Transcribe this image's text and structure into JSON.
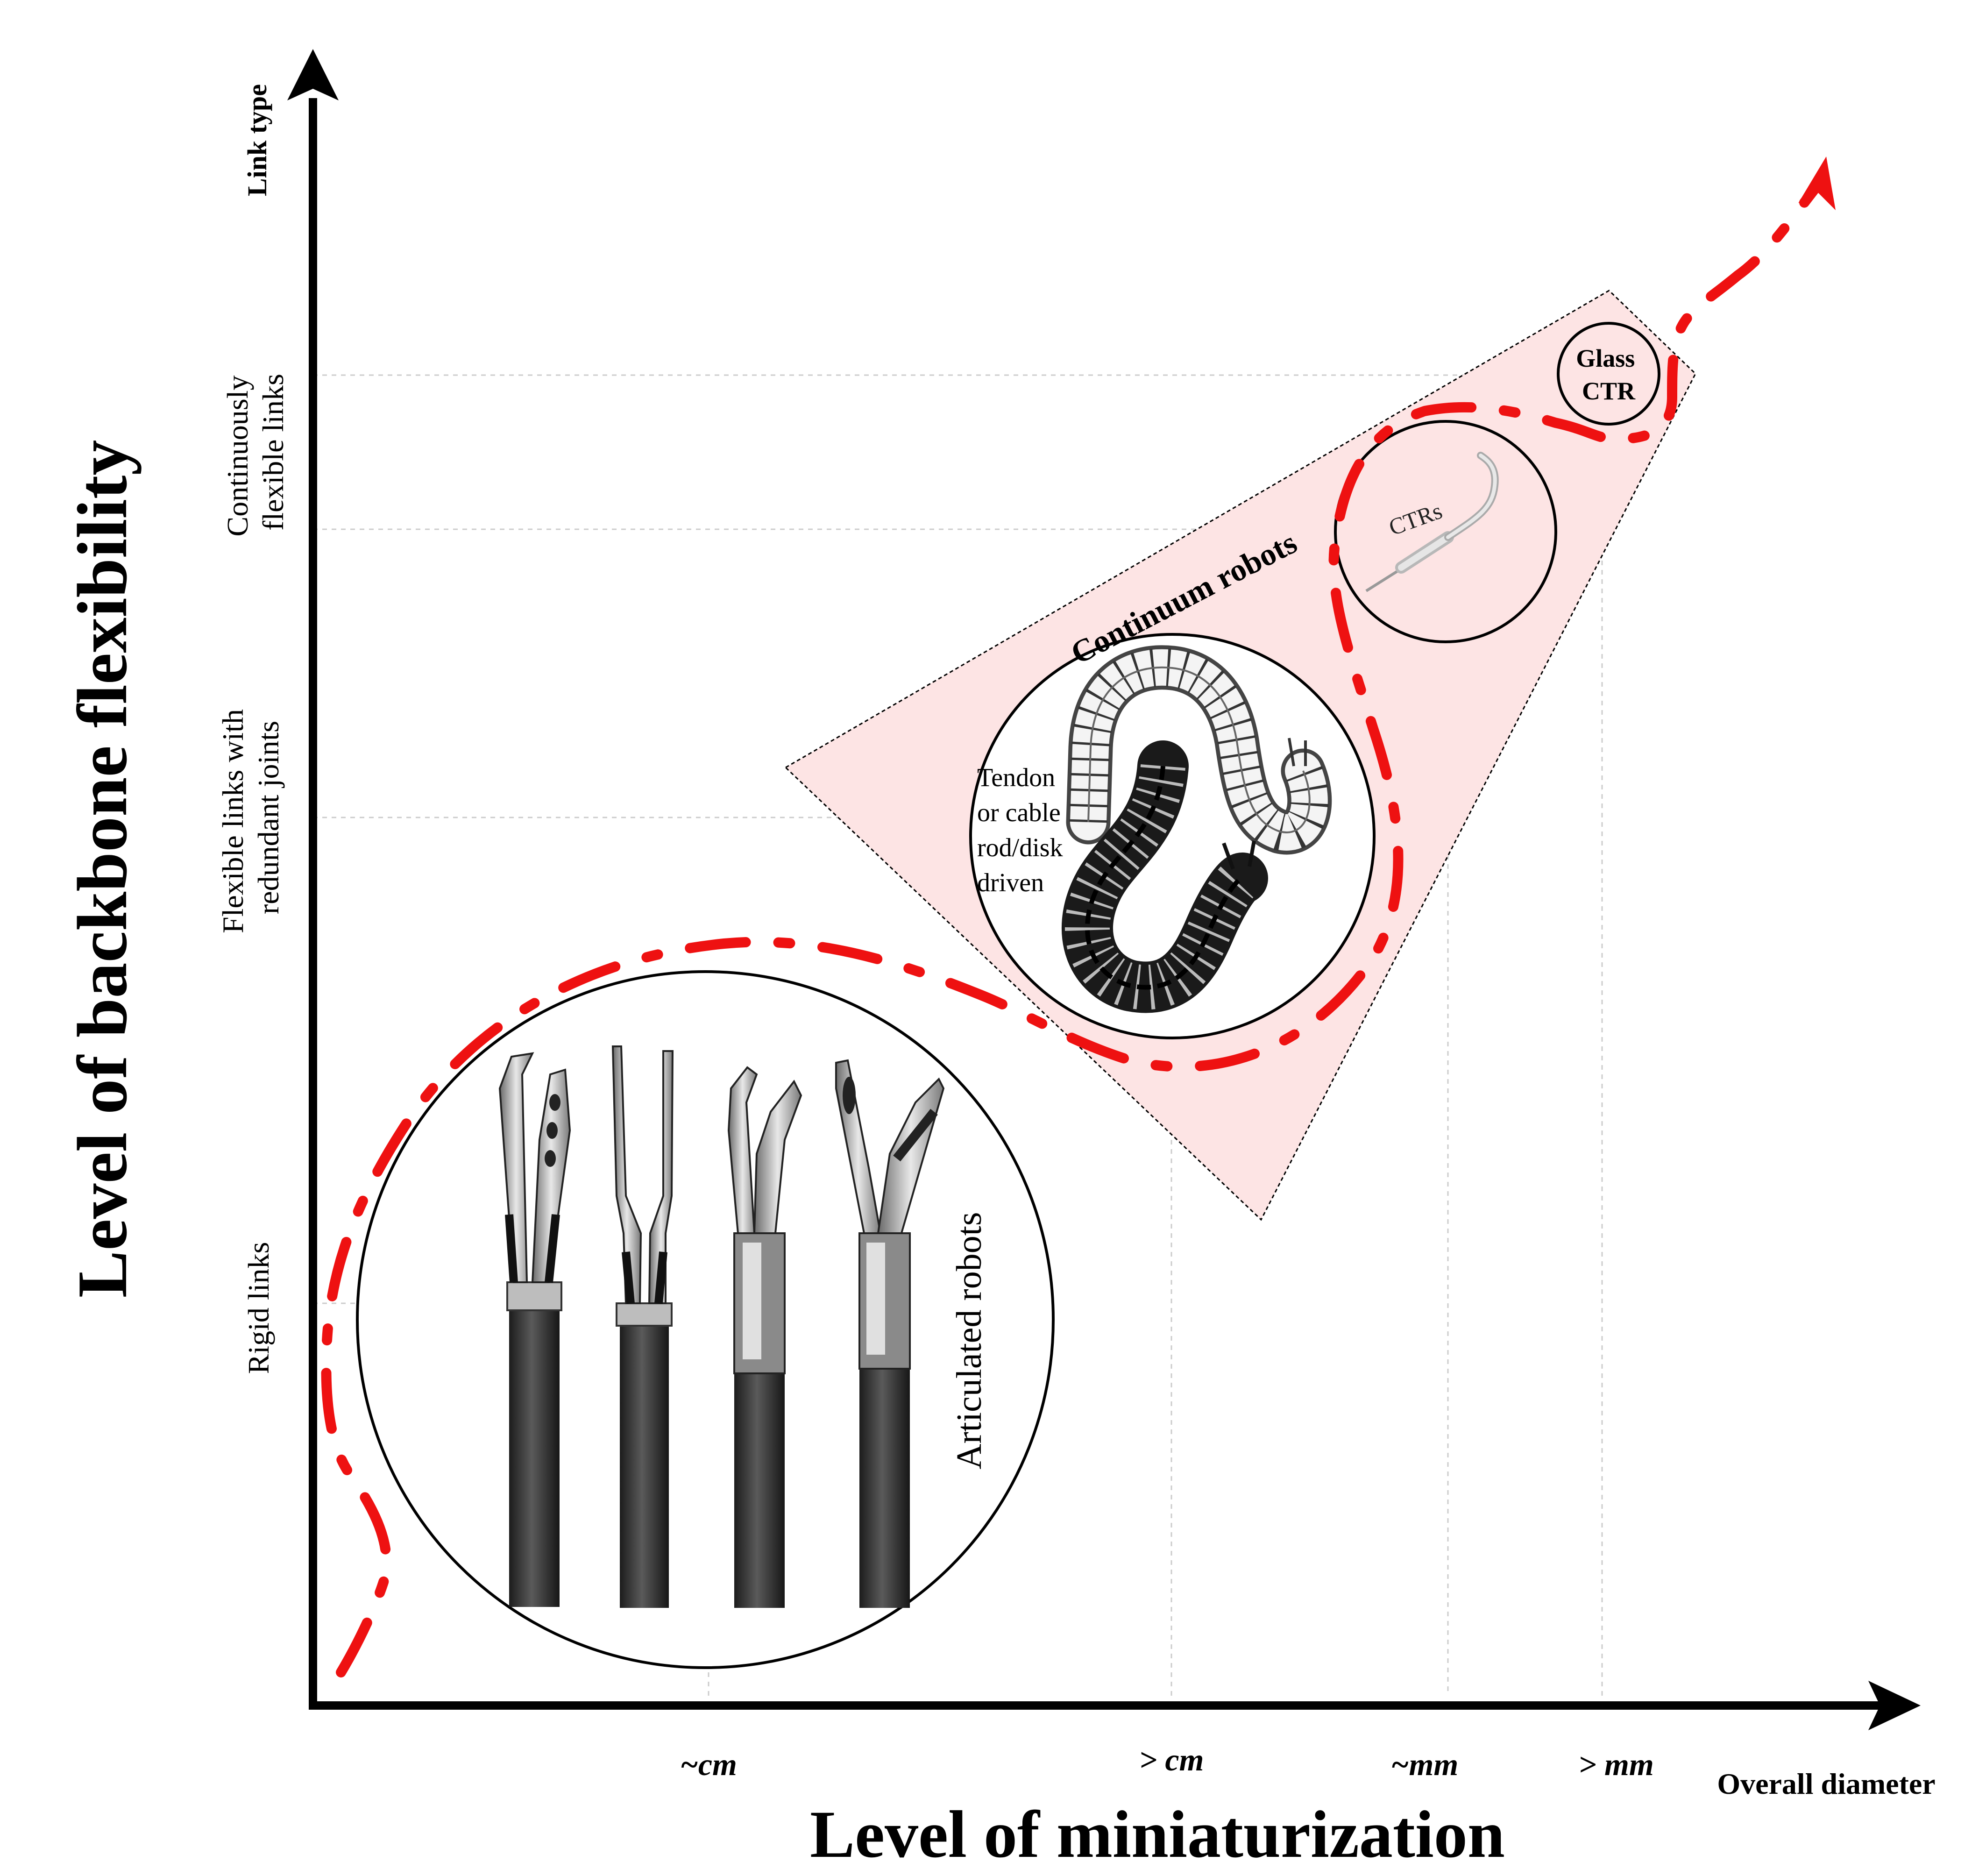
{
  "axes": {
    "y_title": "Level of backbone flexibility",
    "x_title": "Level of miniaturization",
    "y_subtitle": "Link type",
    "x_subtitle": "Overall diameter"
  },
  "y_levels": {
    "rigid": "Rigid links",
    "redundant_line1": "Flexible links with",
    "redundant_line2": "redundant joints",
    "continuous_line1": "Continuously",
    "continuous_line2": "flexible links"
  },
  "x_ticks": [
    "~cm",
    "> cm",
    "~mm",
    "> mm"
  ],
  "regions": {
    "continuum_label": "Continuum robots",
    "articulated_label": "Articulated robots",
    "tendon_lines": [
      "Tendon",
      "or cable",
      "rod/disk",
      "driven"
    ],
    "ctr_label": "CTRs",
    "glass_ctr_lines": [
      "Glass",
      "CTR"
    ]
  },
  "colors": {
    "axis": "#000000",
    "trend": "#ee1111",
    "continuum_fill": "#fde4e4",
    "grid": "#cccccc",
    "instrument_dark": "#2a2a2a",
    "instrument_light": "#bdbdbd"
  }
}
